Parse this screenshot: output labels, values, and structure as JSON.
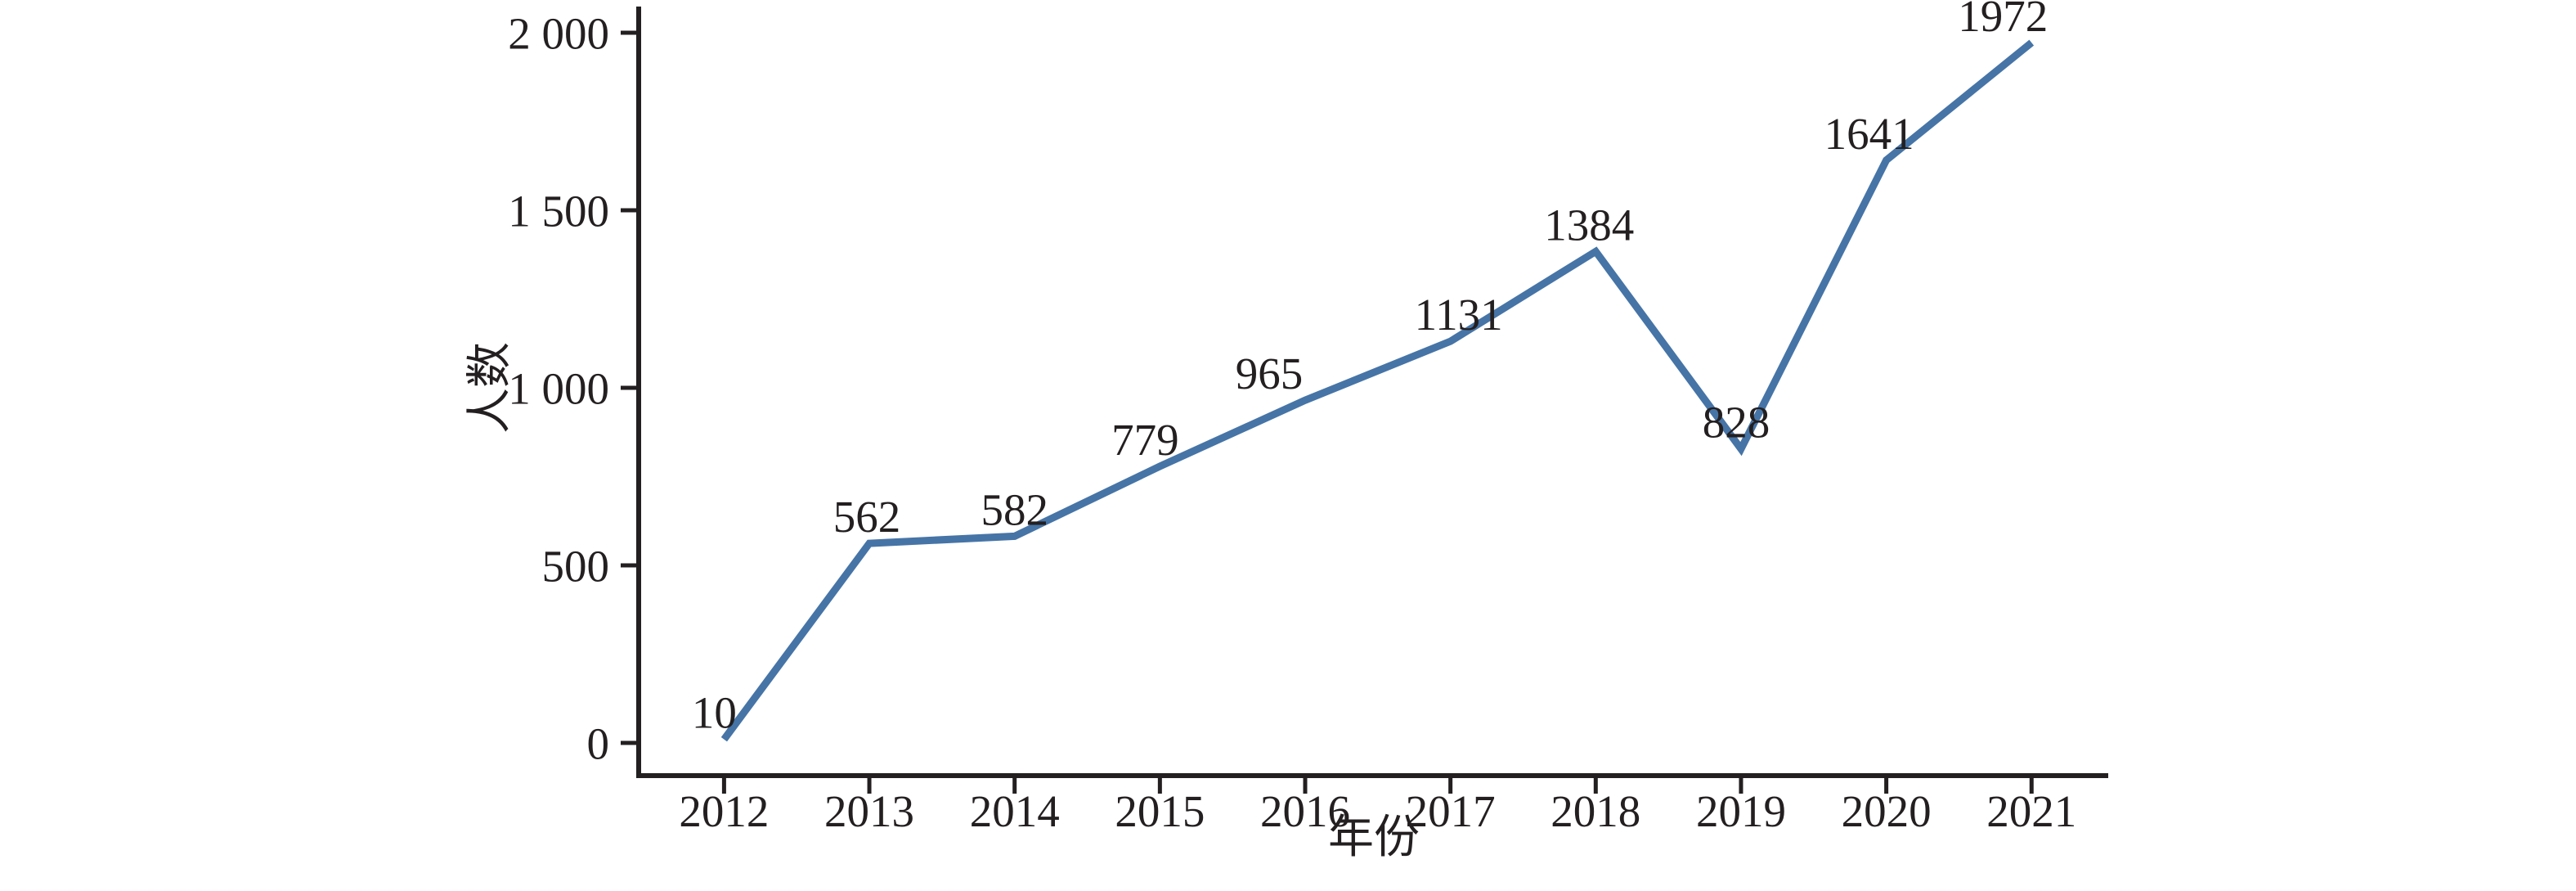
{
  "figure": {
    "background_color": "#ffffff",
    "axis_color": "#231f20",
    "series_line_color": "#4674a6"
  },
  "chart_data": {
    "type": "line",
    "title": "",
    "xlabel": "年份",
    "ylabel": "人数",
    "categories": [
      "2012",
      "2013",
      "2014",
      "2015",
      "2016",
      "2017",
      "2018",
      "2019",
      "2020",
      "2021"
    ],
    "series": [
      {
        "name": "人数",
        "values": [
          10,
          562,
          582,
          779,
          965,
          1131,
          1384,
          828,
          1641,
          1972
        ]
      }
    ],
    "data_labels": [
      "10",
      "562",
      "582",
      "779",
      "965",
      "1131",
      "1384",
      "828",
      "1641",
      "1972"
    ],
    "ylim": [
      0,
      2000
    ],
    "ytick_values": [
      0,
      500,
      1000,
      1500,
      2000
    ],
    "ytick_labels": [
      "0",
      "500",
      "1 000",
      "1 500",
      "2 000"
    ],
    "grid": false,
    "legend_position": "none",
    "label_dx_hint": [
      -12,
      -3,
      0,
      -18,
      -44,
      10,
      -8,
      -6,
      -21,
      -35
    ],
    "label_dy_hint": -14
  }
}
